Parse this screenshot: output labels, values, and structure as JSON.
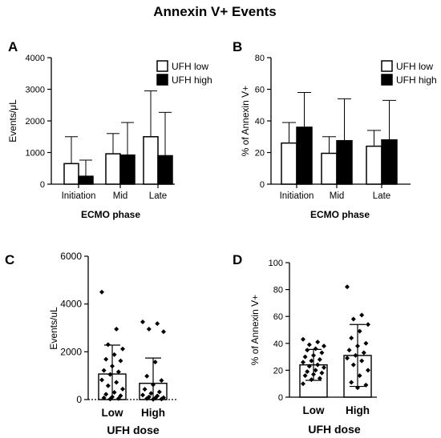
{
  "figure_title": "Annexin V+  Events",
  "chart_data": [
    {
      "panel": "A",
      "type": "bar",
      "categories": [
        "Initiation",
        "Mid",
        "Late"
      ],
      "series": [
        {
          "name": "UFH low",
          "fill": "#ffffff",
          "values": [
            650,
            960,
            1500
          ],
          "error_upper": [
            1500,
            1600,
            2950
          ]
        },
        {
          "name": "UFH high",
          "fill": "#000000",
          "values": [
            250,
            920,
            900
          ],
          "error_upper": [
            760,
            1950,
            2270
          ]
        }
      ],
      "ylabel": "Events/μL",
      "xlabel": "ECMO phase",
      "ylim": [
        0,
        4000
      ],
      "yticks": [
        0,
        1000,
        2000,
        3000,
        4000
      ],
      "legend": "top-right",
      "grid": false
    },
    {
      "panel": "B",
      "type": "bar",
      "categories": [
        "Initiation",
        "Mid",
        "Late"
      ],
      "series": [
        {
          "name": "UFH low",
          "fill": "#ffffff",
          "values": [
            26,
            19.5,
            24
          ],
          "error_upper": [
            39,
            30,
            34
          ]
        },
        {
          "name": "UFH high",
          "fill": "#000000",
          "values": [
            36,
            27.5,
            28
          ],
          "error_upper": [
            58,
            54,
            53
          ]
        }
      ],
      "ylabel": "% of Annexin V+",
      "xlabel": "ECMO phase",
      "ylim": [
        0,
        80
      ],
      "yticks": [
        0,
        20,
        40,
        60,
        80
      ],
      "legend": "top-right",
      "grid": false
    },
    {
      "panel": "C",
      "type": "scatter",
      "categories": [
        "Low",
        "High"
      ],
      "bars": [
        {
          "value": 1070,
          "error_low": 0,
          "error_high": 2280
        },
        {
          "value": 680,
          "error_low": 0,
          "error_high": 1740
        }
      ],
      "points": [
        [
          4500,
          2950,
          2300,
          2120,
          1880,
          1690,
          1620,
          1400,
          1220,
          1160,
          1050,
          820,
          720,
          580,
          440,
          300,
          220,
          160,
          110,
          70,
          40,
          20
        ],
        [
          3250,
          3180,
          2950,
          2840,
          1570,
          980,
          800,
          620,
          430,
          320,
          260,
          190,
          150,
          110,
          80,
          60,
          40,
          20,
          10
        ]
      ],
      "ylabel": "Events/uL",
      "xlabel": "UFH dose",
      "ylim": [
        0,
        6000
      ],
      "yticks": [
        0,
        2000,
        4000,
        6000
      ],
      "grid": false
    },
    {
      "panel": "D",
      "type": "scatter",
      "categories": [
        "Low",
        "High"
      ],
      "bars": [
        {
          "value": 24,
          "error_low": 12.5,
          "error_high": 35.5
        },
        {
          "value": 31,
          "error_low": 8,
          "error_high": 54
        }
      ],
      "points": [
        [
          43,
          41,
          39,
          38,
          36,
          35,
          33,
          31,
          30,
          28,
          27,
          26,
          24,
          23,
          22,
          20,
          19,
          18,
          17,
          16,
          14,
          13,
          10
        ],
        [
          82,
          61,
          58,
          54,
          49,
          44,
          40,
          38,
          35,
          33,
          31,
          29,
          27,
          24,
          20,
          16,
          11,
          9,
          7
        ]
      ],
      "ylabel": "% of Annexin V+",
      "xlabel": "UFH dose",
      "ylim": [
        0,
        100
      ],
      "yticks": [
        0,
        20,
        40,
        60,
        80,
        100
      ],
      "grid": false
    }
  ]
}
